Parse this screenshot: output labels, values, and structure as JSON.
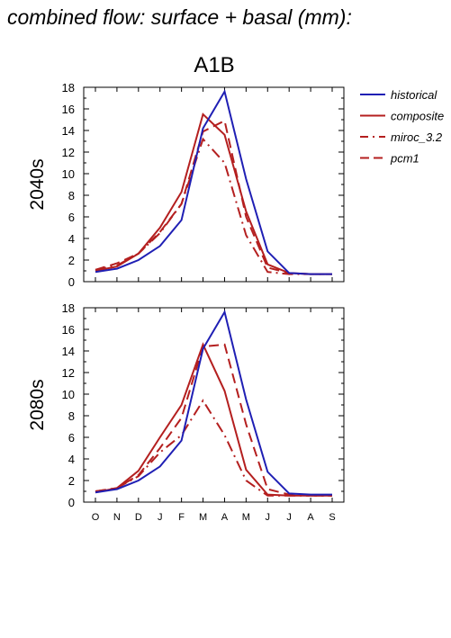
{
  "title": "combined flow: surface + basal (mm):",
  "chart_data": {
    "type": "line",
    "column_label": "A1B",
    "x_ticks": [
      "O",
      "N",
      "D",
      "J",
      "F",
      "M",
      "A",
      "M",
      "J",
      "J",
      "A",
      "S"
    ],
    "ylim": [
      0,
      18
    ],
    "y_ticks": [
      "0",
      "2",
      "4",
      "6",
      "8",
      "10",
      "12",
      "14",
      "16",
      "18"
    ],
    "grid": false,
    "legend_position": "right",
    "colors": {
      "historical": "#1f1fb4",
      "scenario": "#b41f1f"
    },
    "legend": [
      {
        "label": "historical",
        "color": "#1f1fb4",
        "dash": "solid"
      },
      {
        "label": "composite",
        "color": "#b41f1f",
        "dash": "solid"
      },
      {
        "label": "miroc_3.2",
        "color": "#b41f1f",
        "dash": "dashdot"
      },
      {
        "label": "pcm1",
        "color": "#b41f1f",
        "dash": "dashed"
      }
    ],
    "panels": [
      {
        "row_label": "2040s",
        "series": [
          {
            "name": "historical",
            "values": [
              0.9,
              1.2,
              2.0,
              3.3,
              5.7,
              14.2,
              17.6,
              9.5,
              2.8,
              0.8,
              0.7,
              0.7
            ]
          },
          {
            "name": "composite",
            "values": [
              1.0,
              1.4,
              2.6,
              5.0,
              8.3,
              15.5,
              13.6,
              6.5,
              1.6,
              0.8,
              0.7,
              0.7
            ]
          },
          {
            "name": "miroc_3.2",
            "values": [
              1.1,
              1.5,
              2.6,
              4.5,
              7.2,
              13.2,
              11.0,
              4.3,
              0.9,
              0.7,
              0.7,
              0.7
            ]
          },
          {
            "name": "pcm1",
            "values": [
              1.1,
              1.7,
              2.6,
              4.6,
              7.2,
              13.9,
              14.9,
              6.0,
              1.3,
              0.8,
              0.7,
              0.7
            ]
          }
        ]
      },
      {
        "row_label": "2080s",
        "series": [
          {
            "name": "historical",
            "values": [
              0.9,
              1.2,
              2.0,
              3.3,
              5.7,
              14.2,
              17.6,
              9.5,
              2.8,
              0.8,
              0.7,
              0.7
            ]
          },
          {
            "name": "composite",
            "values": [
              0.9,
              1.3,
              2.9,
              6.0,
              9.0,
              14.6,
              10.3,
              3.0,
              0.7,
              0.6,
              0.6,
              0.6
            ]
          },
          {
            "name": "miroc_3.2",
            "values": [
              1.0,
              1.3,
              2.4,
              4.6,
              6.2,
              9.4,
              6.2,
              2.0,
              0.6,
              0.6,
              0.6,
              0.6
            ]
          },
          {
            "name": "pcm1",
            "values": [
              1.0,
              1.3,
              2.5,
              5.0,
              7.8,
              14.4,
              14.6,
              7.2,
              1.2,
              0.7,
              0.6,
              0.6
            ]
          }
        ]
      }
    ]
  }
}
